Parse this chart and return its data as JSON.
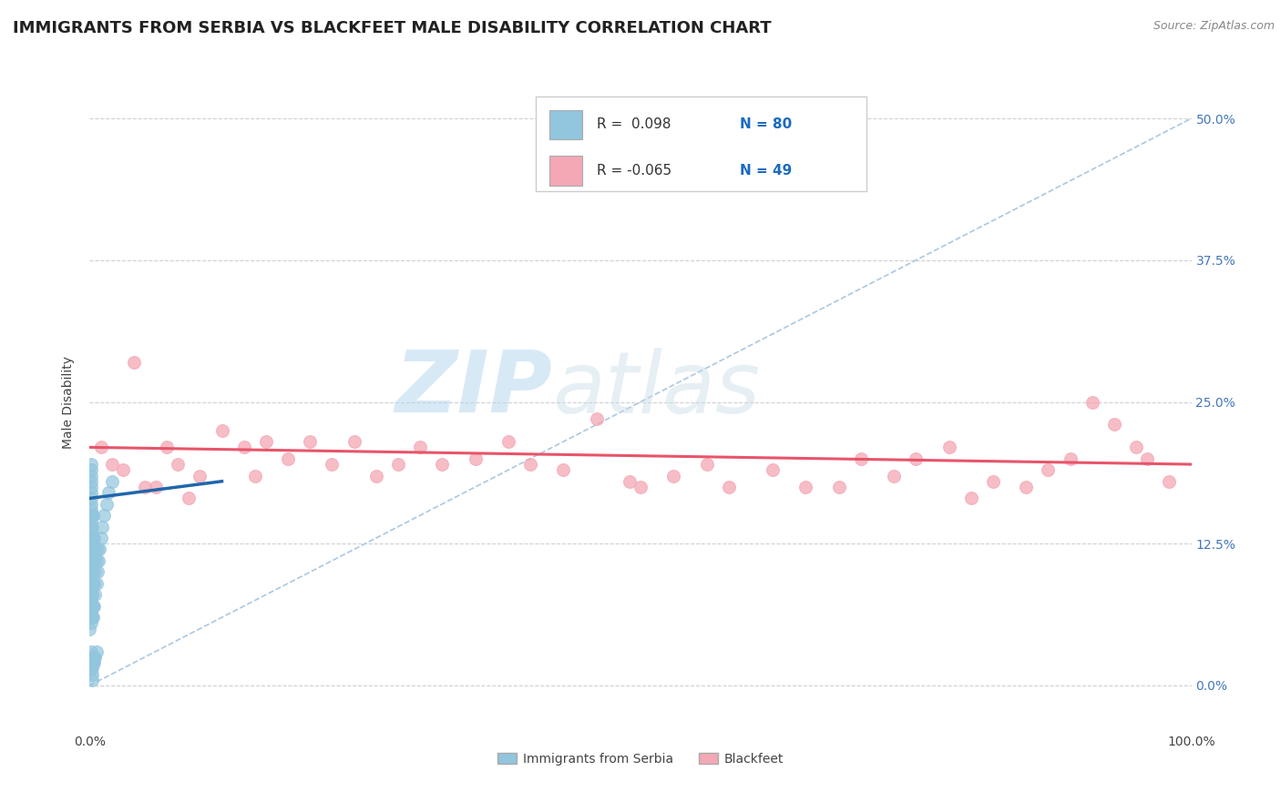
{
  "title": "IMMIGRANTS FROM SERBIA VS BLACKFEET MALE DISABILITY CORRELATION CHART",
  "source": "Source: ZipAtlas.com",
  "ylabel": "Male Disability",
  "watermark_zip": "ZIP",
  "watermark_atlas": "atlas",
  "legend_labels": [
    "Immigrants from Serbia",
    "Blackfeet"
  ],
  "series1": {
    "name": "Immigrants from Serbia",
    "color": "#92c5de",
    "fill_color": "#92c5de",
    "line_color": "#2166ac",
    "R": 0.098,
    "N": 80,
    "x": [
      0.0,
      0.001,
      0.001,
      0.001,
      0.001,
      0.001,
      0.001,
      0.001,
      0.001,
      0.001,
      0.001,
      0.001,
      0.001,
      0.001,
      0.001,
      0.001,
      0.001,
      0.001,
      0.001,
      0.001,
      0.001,
      0.001,
      0.001,
      0.001,
      0.001,
      0.001,
      0.001,
      0.001,
      0.001,
      0.001,
      0.002,
      0.002,
      0.002,
      0.002,
      0.002,
      0.002,
      0.002,
      0.002,
      0.002,
      0.002,
      0.003,
      0.003,
      0.003,
      0.003,
      0.003,
      0.003,
      0.004,
      0.004,
      0.004,
      0.004,
      0.005,
      0.005,
      0.005,
      0.006,
      0.006,
      0.007,
      0.007,
      0.008,
      0.009,
      0.01,
      0.011,
      0.013,
      0.015,
      0.017,
      0.02,
      0.001,
      0.001,
      0.001,
      0.001,
      0.002,
      0.002,
      0.002,
      0.003,
      0.003,
      0.004,
      0.004,
      0.005,
      0.006,
      0.002,
      0.002
    ],
    "y": [
      0.05,
      0.055,
      0.06,
      0.065,
      0.07,
      0.075,
      0.08,
      0.085,
      0.09,
      0.095,
      0.1,
      0.105,
      0.11,
      0.115,
      0.12,
      0.125,
      0.13,
      0.135,
      0.14,
      0.145,
      0.15,
      0.155,
      0.16,
      0.165,
      0.17,
      0.175,
      0.18,
      0.185,
      0.19,
      0.195,
      0.06,
      0.07,
      0.08,
      0.09,
      0.1,
      0.11,
      0.12,
      0.13,
      0.14,
      0.15,
      0.06,
      0.07,
      0.09,
      0.11,
      0.13,
      0.15,
      0.07,
      0.09,
      0.11,
      0.13,
      0.08,
      0.1,
      0.12,
      0.09,
      0.11,
      0.1,
      0.12,
      0.11,
      0.12,
      0.13,
      0.14,
      0.15,
      0.16,
      0.17,
      0.18,
      0.03,
      0.025,
      0.02,
      0.015,
      0.025,
      0.02,
      0.015,
      0.025,
      0.02,
      0.025,
      0.02,
      0.025,
      0.03,
      0.01,
      0.005
    ],
    "trend_x0": 0.0,
    "trend_x1": 0.12,
    "trend_y0": 0.165,
    "trend_y1": 0.18
  },
  "series2": {
    "name": "Blackfeet",
    "color": "#f4a7b4",
    "fill_color": "#f4a7b4",
    "line_color": "#e8546a",
    "R": -0.065,
    "N": 49,
    "x": [
      0.01,
      0.02,
      0.04,
      0.05,
      0.07,
      0.08,
      0.1,
      0.12,
      0.14,
      0.16,
      0.18,
      0.2,
      0.22,
      0.24,
      0.26,
      0.28,
      0.3,
      0.32,
      0.35,
      0.38,
      0.4,
      0.43,
      0.46,
      0.49,
      0.5,
      0.53,
      0.56,
      0.58,
      0.62,
      0.65,
      0.68,
      0.7,
      0.73,
      0.75,
      0.78,
      0.8,
      0.82,
      0.85,
      0.87,
      0.89,
      0.91,
      0.93,
      0.95,
      0.96,
      0.98,
      0.03,
      0.06,
      0.09,
      0.15
    ],
    "y": [
      0.21,
      0.195,
      0.285,
      0.175,
      0.21,
      0.195,
      0.185,
      0.225,
      0.21,
      0.215,
      0.2,
      0.215,
      0.195,
      0.215,
      0.185,
      0.195,
      0.21,
      0.195,
      0.2,
      0.215,
      0.195,
      0.19,
      0.235,
      0.18,
      0.175,
      0.185,
      0.195,
      0.175,
      0.19,
      0.175,
      0.175,
      0.2,
      0.185,
      0.2,
      0.21,
      0.165,
      0.18,
      0.175,
      0.19,
      0.2,
      0.25,
      0.23,
      0.21,
      0.2,
      0.18,
      0.19,
      0.175,
      0.165,
      0.185
    ],
    "trend_x0": 0.0,
    "trend_x1": 1.0,
    "trend_y0": 0.21,
    "trend_y1": 0.195
  },
  "dashed_line": {
    "x0": 0.0,
    "y0": 0.0,
    "x1": 1.0,
    "y1": 0.5,
    "color": "#aac8e0",
    "linewidth": 1.2
  },
  "xlim": [
    0.0,
    1.0
  ],
  "ylim": [
    -0.04,
    0.54
  ],
  "yticks": [
    0.0,
    0.125,
    0.25,
    0.375,
    0.5
  ],
  "ytick_labels": [
    "0.0%",
    "12.5%",
    "25.0%",
    "37.5%",
    "50.0%"
  ],
  "xticks": [
    0.0,
    0.25,
    0.5,
    0.75,
    1.0
  ],
  "xtick_labels": [
    "0.0%",
    "",
    "",
    "",
    "100.0%"
  ],
  "grid_color": "#d0d0d0",
  "bg_color": "#ffffff",
  "marker_size": 100,
  "title_fontsize": 13,
  "axis_label_fontsize": 10,
  "tick_fontsize": 10
}
